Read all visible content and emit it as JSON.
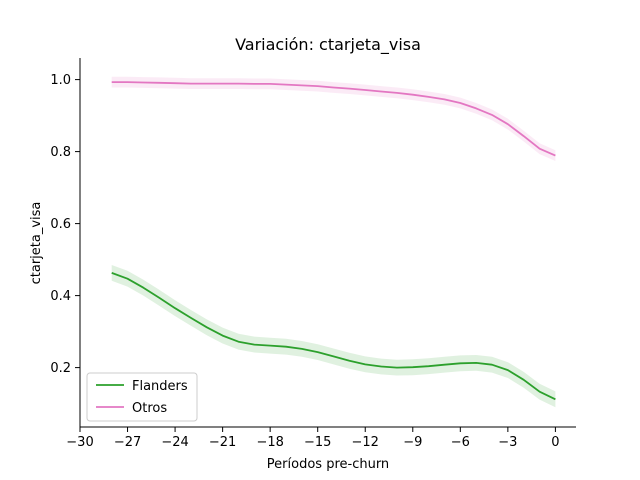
{
  "chart_data": {
    "type": "line",
    "title": "Variación: ctarjeta_visa",
    "xlabel": "Períodos pre-churn",
    "ylabel": "ctarjeta_visa",
    "xlim": [
      -30,
      1.3
    ],
    "ylim": [
      0.035,
      1.06
    ],
    "xticks": [
      -30,
      -27,
      -24,
      -21,
      -18,
      -15,
      -12,
      -9,
      -6,
      -3,
      0
    ],
    "xtick_labels": [
      "−30",
      "−27",
      "−24",
      "−21",
      "−18",
      "−15",
      "−12",
      "−9",
      "−6",
      "−3",
      "0"
    ],
    "yticks": [
      0.2,
      0.4,
      0.6,
      0.8,
      1.0
    ],
    "ytick_labels": [
      "0.2",
      "0.4",
      "0.6",
      "0.8",
      "1.0"
    ],
    "grid": false,
    "legend_position": "lower-left",
    "x": [
      -28,
      -27,
      -26,
      -25,
      -24,
      -23,
      -22,
      -21,
      -20,
      -19,
      -18,
      -17,
      -16,
      -15,
      -14,
      -13,
      -12,
      -11,
      -10,
      -9,
      -8,
      -7,
      -6,
      -5,
      -4,
      -3,
      -2,
      -1,
      0
    ],
    "series": [
      {
        "name": "Flanders",
        "color": "#2ca02c",
        "values": [
          0.463,
          0.447,
          0.422,
          0.394,
          0.365,
          0.338,
          0.312,
          0.289,
          0.272,
          0.264,
          0.261,
          0.258,
          0.252,
          0.243,
          0.231,
          0.219,
          0.209,
          0.203,
          0.2,
          0.201,
          0.204,
          0.208,
          0.212,
          0.213,
          0.208,
          0.193,
          0.166,
          0.133,
          0.112
        ],
        "band": 0.022
      },
      {
        "name": "Otros",
        "color": "#e377c2",
        "values": [
          0.993,
          0.993,
          0.992,
          0.991,
          0.99,
          0.989,
          0.989,
          0.989,
          0.989,
          0.988,
          0.988,
          0.986,
          0.984,
          0.982,
          0.978,
          0.975,
          0.971,
          0.967,
          0.963,
          0.958,
          0.952,
          0.945,
          0.935,
          0.92,
          0.902,
          0.876,
          0.843,
          0.808,
          0.789
        ],
        "band": 0.015
      }
    ]
  }
}
